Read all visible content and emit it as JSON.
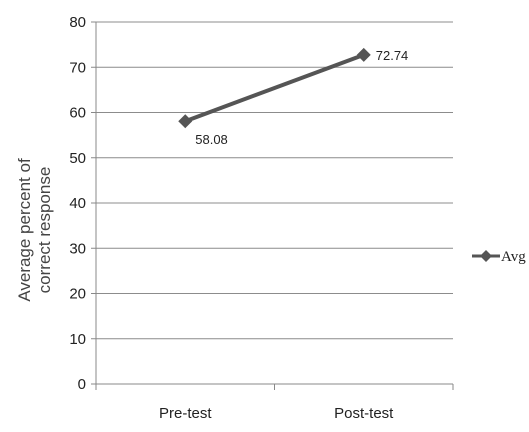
{
  "chart_data": {
    "type": "line",
    "categories": [
      "Pre-test",
      "Post-test"
    ],
    "series": [
      {
        "name": "Avg",
        "values": [
          58.08,
          72.74
        ],
        "color": "#555555"
      }
    ],
    "data_labels": [
      "58.08",
      "72.74"
    ],
    "ylabel_lines": [
      "Average percent of",
      "correct response"
    ],
    "ylim": [
      0,
      80
    ],
    "yticks": [
      0,
      10,
      20,
      30,
      40,
      50,
      60,
      70,
      80
    ],
    "grid": true,
    "legend_position": "right"
  }
}
